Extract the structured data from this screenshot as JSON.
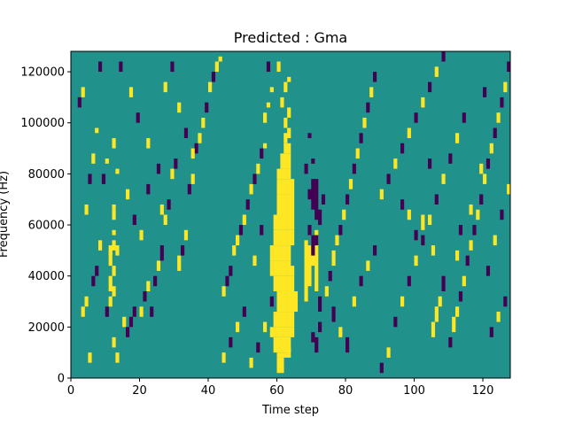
{
  "chart_data": {
    "type": "heatmap",
    "title": "Predicted : Gma",
    "xlabel": "Time step",
    "ylabel": "Frequency (Hz)",
    "xlim": [
      0,
      128
    ],
    "ylim": [
      0,
      128000
    ],
    "x_ticks": [
      0,
      20,
      40,
      60,
      80,
      100,
      120
    ],
    "x_tick_labels": [
      "0",
      "20",
      "40",
      "60",
      "80",
      "100",
      "120"
    ],
    "y_ticks": [
      0,
      20000,
      40000,
      60000,
      80000,
      100000,
      120000
    ],
    "y_tick_labels": [
      "0",
      "20000",
      "40000",
      "60000",
      "80000",
      "100000",
      "120000"
    ],
    "grid": false,
    "legend": "none",
    "colormap": "viridis",
    "value_range": [
      -1,
      1
    ],
    "colors": {
      "low": "#440154",
      "mid": "#21918c",
      "high": "#fde725"
    },
    "background_value": 0,
    "n_time_steps": 128,
    "n_freq_bins": 64,
    "freq_bin_hz": 2000,
    "cells": [
      [
        60,
        1,
        3,
        1
      ],
      [
        61,
        1,
        3,
        1
      ],
      [
        60,
        4,
        1,
        1
      ],
      [
        61,
        4,
        1,
        1
      ],
      [
        62,
        4,
        1,
        1
      ],
      [
        63,
        4,
        2,
        1
      ],
      [
        59,
        5,
        3,
        1
      ],
      [
        60,
        5,
        3,
        1
      ],
      [
        61,
        5,
        3,
        1
      ],
      [
        62,
        5,
        3,
        1
      ],
      [
        63,
        5,
        3,
        1
      ],
      [
        58,
        8,
        2,
        1
      ],
      [
        59,
        8,
        2,
        1
      ],
      [
        60,
        8,
        2,
        1
      ],
      [
        61,
        8,
        2,
        1
      ],
      [
        62,
        8,
        2,
        1
      ],
      [
        63,
        8,
        2,
        1
      ],
      [
        64,
        8,
        2,
        1
      ],
      [
        59,
        10,
        3,
        1
      ],
      [
        60,
        10,
        3,
        1
      ],
      [
        61,
        10,
        3,
        1
      ],
      [
        62,
        10,
        3,
        1
      ],
      [
        63,
        10,
        3,
        1
      ],
      [
        64,
        10,
        3,
        1
      ],
      [
        60,
        13,
        4,
        1
      ],
      [
        61,
        13,
        4,
        1
      ],
      [
        62,
        13,
        4,
        1
      ],
      [
        63,
        13,
        4,
        1
      ],
      [
        64,
        13,
        4,
        1
      ],
      [
        65,
        13,
        4,
        1
      ],
      [
        59,
        17,
        3,
        1
      ],
      [
        60,
        17,
        3,
        1
      ],
      [
        61,
        17,
        3,
        1
      ],
      [
        62,
        17,
        3,
        1
      ],
      [
        63,
        17,
        3,
        1
      ],
      [
        64,
        17,
        3,
        1
      ],
      [
        58,
        20,
        3,
        1
      ],
      [
        59,
        20,
        3,
        1
      ],
      [
        60,
        20,
        3,
        1
      ],
      [
        61,
        20,
        3,
        1
      ],
      [
        62,
        20,
        3,
        1
      ],
      [
        63,
        20,
        3,
        1
      ],
      [
        64,
        20,
        2,
        1
      ],
      [
        58,
        23,
        3,
        1
      ],
      [
        59,
        23,
        3,
        1
      ],
      [
        60,
        23,
        3,
        1
      ],
      [
        61,
        23,
        3,
        1
      ],
      [
        62,
        23,
        3,
        1
      ],
      [
        63,
        23,
        3,
        1
      ],
      [
        59,
        26,
        3,
        1
      ],
      [
        60,
        26,
        3,
        1
      ],
      [
        61,
        26,
        3,
        1
      ],
      [
        62,
        26,
        3,
        1
      ],
      [
        63,
        26,
        3,
        1
      ],
      [
        64,
        26,
        3,
        1
      ],
      [
        59,
        29,
        3,
        1
      ],
      [
        60,
        29,
        3,
        1
      ],
      [
        61,
        29,
        3,
        1
      ],
      [
        62,
        29,
        3,
        1
      ],
      [
        63,
        29,
        3,
        1
      ],
      [
        64,
        29,
        3,
        1
      ],
      [
        60,
        32,
        4,
        1
      ],
      [
        61,
        32,
        4,
        1
      ],
      [
        62,
        32,
        4,
        1
      ],
      [
        63,
        32,
        4,
        1
      ],
      [
        64,
        32,
        4,
        1
      ],
      [
        60,
        36,
        3,
        1
      ],
      [
        61,
        36,
        3,
        1
      ],
      [
        62,
        36,
        3,
        1
      ],
      [
        63,
        36,
        3,
        1
      ],
      [
        64,
        36,
        3,
        1
      ],
      [
        60,
        39,
        2,
        1
      ],
      [
        61,
        39,
        2,
        1
      ],
      [
        62,
        39,
        2,
        1
      ],
      [
        63,
        39,
        2,
        1
      ],
      [
        61,
        41,
        3,
        1
      ],
      [
        62,
        41,
        3,
        1
      ],
      [
        63,
        41,
        3,
        1
      ],
      [
        62,
        44,
        2,
        1
      ],
      [
        63,
        44,
        2,
        1
      ],
      [
        62,
        46,
        2,
        1
      ],
      [
        63,
        47,
        2,
        1
      ],
      [
        62,
        49,
        2,
        1
      ],
      [
        63,
        51,
        2,
        1
      ],
      [
        61,
        53,
        2,
        1
      ],
      [
        62,
        56,
        2,
        1
      ],
      [
        63,
        58,
        1,
        1
      ],
      [
        60,
        60,
        2,
        1
      ],
      [
        57,
        53,
        1,
        1
      ],
      [
        56,
        45,
        1,
        1
      ],
      [
        58,
        56,
        1,
        1
      ],
      [
        68,
        15,
        12,
        1
      ],
      [
        69,
        18,
        8,
        1
      ],
      [
        70,
        22,
        6,
        1
      ],
      [
        71,
        17,
        12,
        1
      ],
      [
        69,
        35,
        2,
        -1
      ],
      [
        70,
        33,
        6,
        -1
      ],
      [
        71,
        31,
        8,
        -1
      ],
      [
        72,
        30,
        3,
        -1
      ],
      [
        69,
        28,
        2,
        -1
      ],
      [
        70,
        24,
        4,
        -1
      ],
      [
        68,
        40,
        2,
        -1
      ],
      [
        70,
        7,
        2,
        -1
      ],
      [
        71,
        5,
        3,
        -1
      ],
      [
        72,
        9,
        2,
        -1
      ],
      [
        72,
        13,
        3,
        -1
      ],
      [
        71,
        26,
        2,
        -1
      ],
      [
        69,
        47,
        1,
        -1
      ],
      [
        70,
        42,
        1,
        -1
      ],
      [
        73,
        34,
        2,
        -1
      ],
      [
        11,
        14,
        2,
        1
      ],
      [
        12,
        16,
        2,
        1
      ],
      [
        11,
        22,
        3,
        1
      ],
      [
        12,
        25,
        2,
        1
      ],
      [
        12,
        28,
        1,
        1
      ],
      [
        12,
        6,
        2,
        1
      ],
      [
        13,
        3,
        2,
        1
      ],
      [
        11,
        17,
        3,
        1
      ],
      [
        12,
        20,
        2,
        1
      ],
      [
        12,
        31,
        2,
        1
      ],
      [
        12,
        33,
        1,
        1
      ],
      [
        11,
        24,
        2,
        1
      ],
      [
        13,
        24,
        2,
        1
      ],
      [
        13,
        40,
        1,
        1
      ],
      [
        12,
        45,
        2,
        1
      ],
      [
        10,
        12,
        2,
        -1
      ],
      [
        15,
        10,
        2,
        1
      ],
      [
        16,
        8,
        2,
        -1
      ],
      [
        17,
        10,
        2,
        -1
      ],
      [
        18,
        12,
        2,
        -1
      ],
      [
        5,
        3,
        2,
        1
      ],
      [
        6,
        18,
        2,
        -1
      ],
      [
        3,
        12,
        2,
        1
      ],
      [
        4,
        14,
        2,
        1
      ],
      [
        7,
        20,
        2,
        -1
      ],
      [
        8,
        25,
        2,
        1
      ],
      [
        9,
        38,
        2,
        -1
      ],
      [
        10,
        42,
        1,
        1
      ],
      [
        4,
        32,
        2,
        1
      ],
      [
        5,
        38,
        2,
        -1
      ],
      [
        6,
        42,
        2,
        1
      ],
      [
        7,
        48,
        1,
        1
      ],
      [
        8,
        60,
        2,
        -1
      ],
      [
        3,
        55,
        2,
        1
      ],
      [
        2,
        53,
        2,
        -1
      ],
      [
        24,
        18,
        2,
        -1
      ],
      [
        25,
        21,
        2,
        1
      ],
      [
        26,
        23,
        3,
        -1
      ],
      [
        27,
        30,
        2,
        1
      ],
      [
        28,
        33,
        2,
        -1
      ],
      [
        29,
        39,
        2,
        1
      ],
      [
        30,
        41,
        2,
        -1
      ],
      [
        31,
        21,
        3,
        1
      ],
      [
        32,
        24,
        2,
        -1
      ],
      [
        33,
        27,
        2,
        1
      ],
      [
        34,
        36,
        2,
        -1
      ],
      [
        35,
        38,
        2,
        1
      ],
      [
        36,
        44,
        2,
        -1
      ],
      [
        37,
        46,
        2,
        1
      ],
      [
        38,
        49,
        2,
        1
      ],
      [
        39,
        52,
        2,
        -1
      ],
      [
        40,
        56,
        2,
        1
      ],
      [
        41,
        58,
        2,
        -1
      ],
      [
        42,
        60,
        2,
        1
      ],
      [
        43,
        62,
        1,
        1
      ],
      [
        20,
        12,
        2,
        1
      ],
      [
        21,
        15,
        2,
        -1
      ],
      [
        22,
        17,
        2,
        1
      ],
      [
        23,
        12,
        2,
        -1
      ],
      [
        44,
        16,
        2,
        1
      ],
      [
        45,
        18,
        2,
        -1
      ],
      [
        46,
        20,
        2,
        -1
      ],
      [
        47,
        24,
        2,
        1
      ],
      [
        48,
        26,
        2,
        1
      ],
      [
        49,
        28,
        2,
        -1
      ],
      [
        50,
        30,
        2,
        1
      ],
      [
        51,
        33,
        2,
        -1
      ],
      [
        52,
        36,
        2,
        1
      ],
      [
        53,
        38,
        2,
        -1
      ],
      [
        54,
        40,
        2,
        1
      ],
      [
        55,
        43,
        2,
        -1
      ],
      [
        56,
        50,
        2,
        1
      ],
      [
        57,
        60,
        2,
        -1
      ],
      [
        74,
        16,
        2,
        1
      ],
      [
        75,
        19,
        2,
        -1
      ],
      [
        76,
        22,
        3,
        1
      ],
      [
        77,
        26,
        2,
        1
      ],
      [
        78,
        28,
        2,
        -1
      ],
      [
        79,
        31,
        2,
        1
      ],
      [
        80,
        34,
        2,
        -1
      ],
      [
        81,
        37,
        2,
        1
      ],
      [
        82,
        40,
        2,
        -1
      ],
      [
        83,
        43,
        2,
        1
      ],
      [
        84,
        46,
        2,
        -1
      ],
      [
        85,
        49,
        2,
        1
      ],
      [
        86,
        52,
        2,
        -1
      ],
      [
        87,
        55,
        2,
        1
      ],
      [
        88,
        58,
        2,
        -1
      ],
      [
        76,
        11,
        3,
        -1
      ],
      [
        78,
        8,
        2,
        1
      ],
      [
        80,
        5,
        3,
        -1
      ],
      [
        82,
        14,
        2,
        1
      ],
      [
        84,
        18,
        2,
        -1
      ],
      [
        86,
        21,
        2,
        1
      ],
      [
        88,
        24,
        2,
        -1
      ],
      [
        90,
        1,
        2,
        -1
      ],
      [
        92,
        4,
        2,
        1
      ],
      [
        94,
        10,
        2,
        -1
      ],
      [
        96,
        14,
        2,
        1
      ],
      [
        98,
        18,
        2,
        -1
      ],
      [
        100,
        22,
        2,
        1
      ],
      [
        102,
        26,
        2,
        -1
      ],
      [
        104,
        30,
        2,
        1
      ],
      [
        106,
        34,
        2,
        -1
      ],
      [
        108,
        38,
        2,
        1
      ],
      [
        110,
        42,
        2,
        -1
      ],
      [
        112,
        46,
        2,
        1
      ],
      [
        114,
        50,
        2,
        -1
      ],
      [
        105,
        8,
        3,
        1
      ],
      [
        106,
        11,
        3,
        1
      ],
      [
        107,
        14,
        2,
        1
      ],
      [
        108,
        17,
        3,
        -1
      ],
      [
        105,
        24,
        2,
        1
      ],
      [
        110,
        6,
        2,
        -1
      ],
      [
        111,
        9,
        3,
        1
      ],
      [
        112,
        12,
        2,
        1
      ],
      [
        113,
        15,
        2,
        -1
      ],
      [
        114,
        18,
        2,
        1
      ],
      [
        115,
        22,
        2,
        -1
      ],
      [
        116,
        25,
        2,
        1
      ],
      [
        117,
        28,
        2,
        -1
      ],
      [
        118,
        31,
        2,
        1
      ],
      [
        119,
        34,
        2,
        -1
      ],
      [
        120,
        38,
        2,
        1
      ],
      [
        121,
        41,
        2,
        -1
      ],
      [
        122,
        44,
        2,
        1
      ],
      [
        123,
        47,
        2,
        -1
      ],
      [
        124,
        50,
        2,
        1
      ],
      [
        125,
        53,
        2,
        -1
      ],
      [
        126,
        56,
        2,
        1
      ],
      [
        127,
        60,
        2,
        -1
      ],
      [
        121,
        20,
        2,
        -1
      ],
      [
        123,
        26,
        2,
        1
      ],
      [
        125,
        31,
        2,
        -1
      ],
      [
        127,
        36,
        2,
        1
      ],
      [
        122,
        8,
        2,
        -1
      ],
      [
        124,
        11,
        2,
        1
      ],
      [
        126,
        14,
        2,
        -1
      ],
      [
        112,
        23,
        2,
        1
      ],
      [
        113,
        28,
        2,
        -1
      ],
      [
        116,
        32,
        2,
        1
      ],
      [
        119,
        40,
        2,
        1
      ],
      [
        120,
        55,
        2,
        -1
      ],
      [
        90,
        35,
        2,
        1
      ],
      [
        92,
        38,
        2,
        -1
      ],
      [
        94,
        41,
        2,
        1
      ],
      [
        96,
        44,
        2,
        -1
      ],
      [
        98,
        47,
        2,
        1
      ],
      [
        100,
        50,
        2,
        -1
      ],
      [
        102,
        53,
        2,
        1
      ],
      [
        104,
        56,
        2,
        -1
      ],
      [
        106,
        59,
        2,
        1
      ],
      [
        108,
        62,
        2,
        -1
      ],
      [
        100,
        27,
        2,
        -1
      ],
      [
        102,
        29,
        3,
        1
      ],
      [
        98,
        31,
        2,
        1
      ],
      [
        96,
        33,
        2,
        -1
      ],
      [
        104,
        41,
        2,
        -1
      ],
      [
        14,
        60,
        2,
        -1
      ],
      [
        17,
        55,
        2,
        1
      ],
      [
        19,
        50,
        2,
        -1
      ],
      [
        22,
        45,
        2,
        1
      ],
      [
        25,
        40,
        2,
        -1
      ],
      [
        27,
        56,
        2,
        1
      ],
      [
        29,
        60,
        2,
        -1
      ],
      [
        31,
        52,
        2,
        1
      ],
      [
        33,
        47,
        2,
        -1
      ],
      [
        35,
        43,
        2,
        1
      ],
      [
        16,
        35,
        2,
        1
      ],
      [
        18,
        30,
        2,
        -1
      ],
      [
        20,
        27,
        2,
        1
      ],
      [
        22,
        36,
        2,
        -1
      ],
      [
        26,
        32,
        2,
        1
      ],
      [
        44,
        3,
        2,
        1
      ],
      [
        46,
        6,
        2,
        -1
      ],
      [
        48,
        9,
        2,
        1
      ],
      [
        50,
        12,
        2,
        -1
      ],
      [
        52,
        2,
        2,
        1
      ],
      [
        54,
        5,
        2,
        -1
      ],
      [
        56,
        9,
        2,
        1
      ],
      [
        58,
        14,
        2,
        -1
      ],
      [
        53,
        22,
        2,
        1
      ],
      [
        55,
        28,
        2,
        -1
      ]
    ]
  }
}
